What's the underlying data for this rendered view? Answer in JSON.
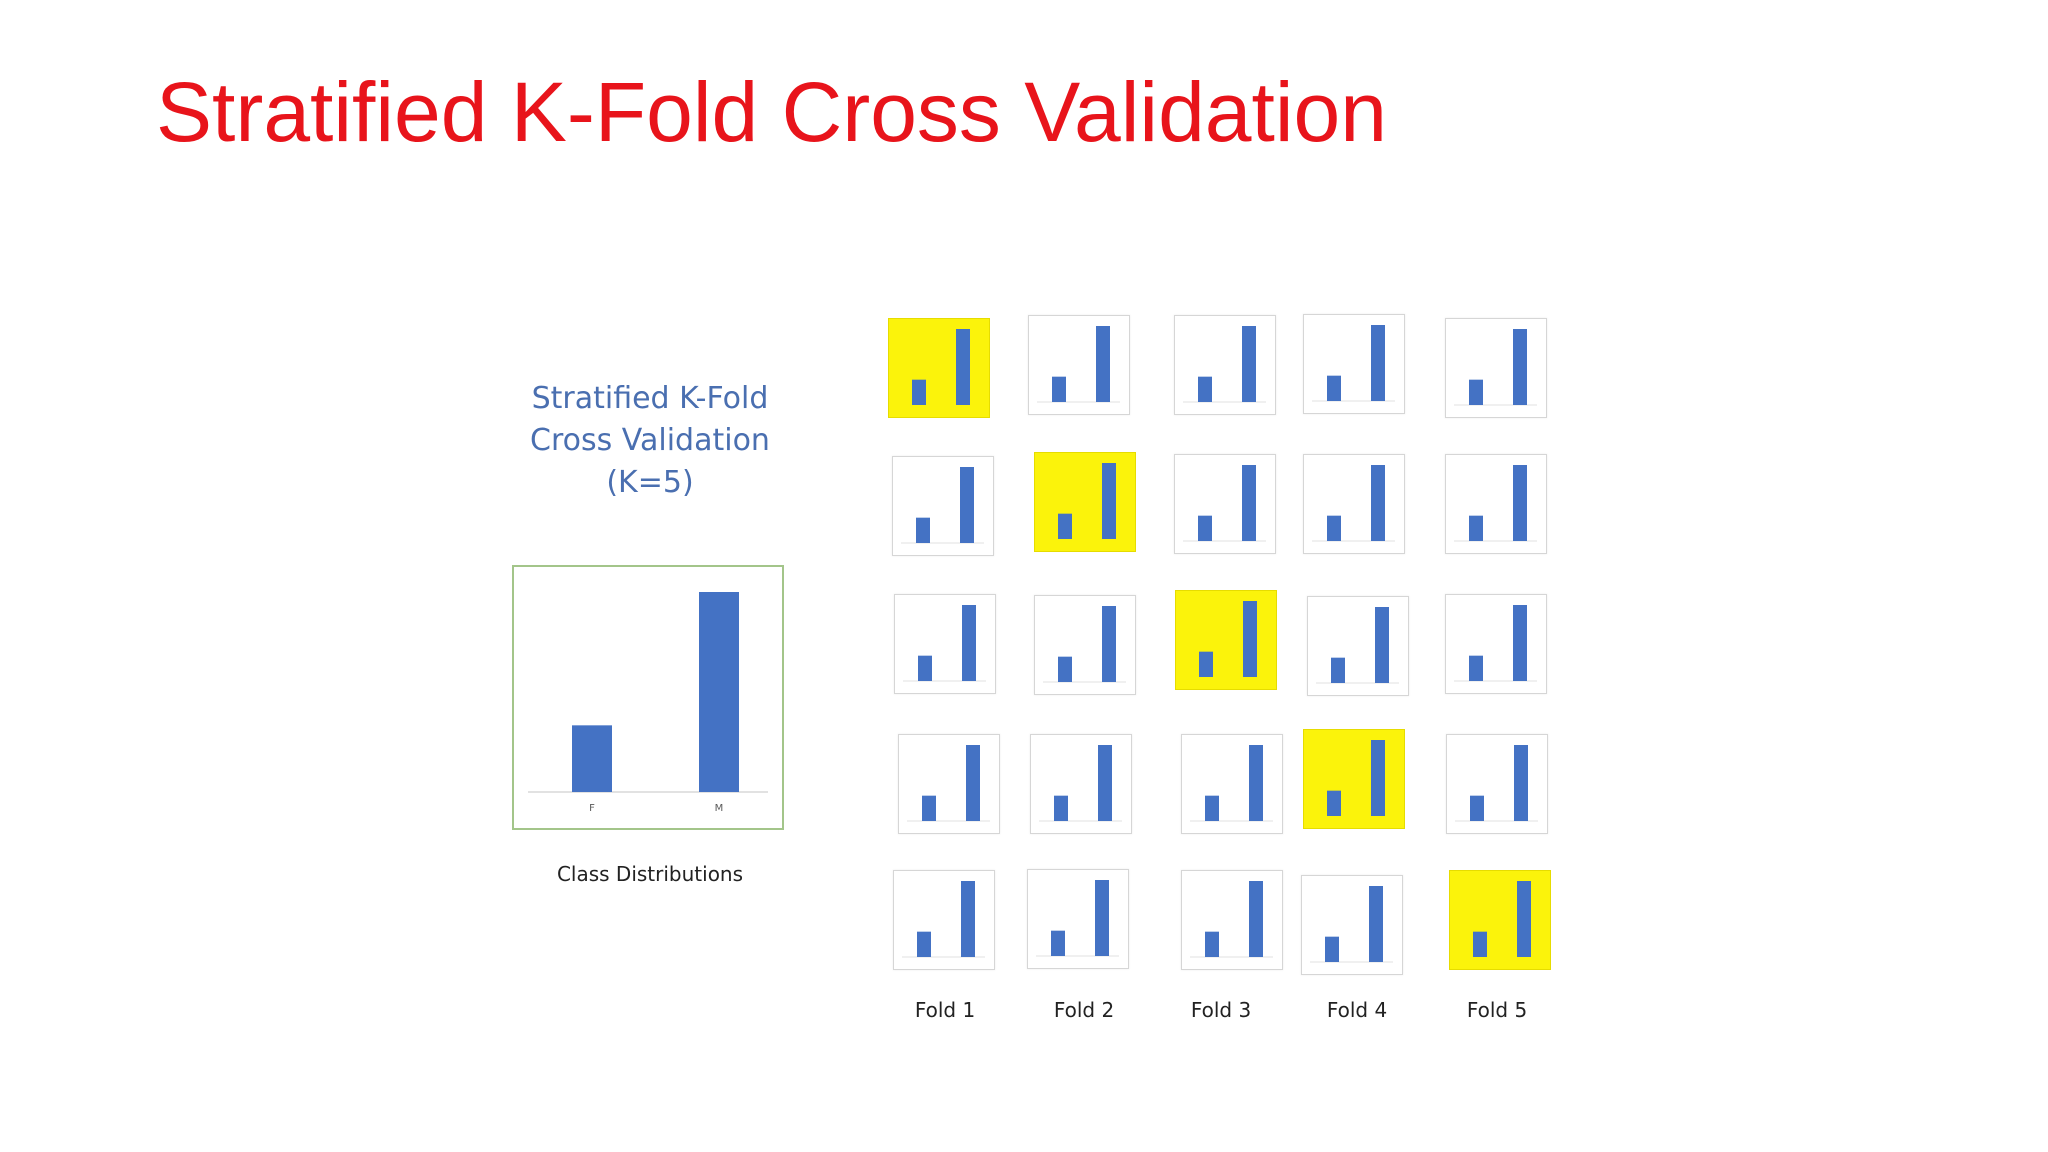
{
  "slide": {
    "title": "Stratified K-Fold Cross Validation"
  },
  "diagram": {
    "heading_lines": [
      "Stratified K-Fold",
      "Cross Validation",
      "(K=5)"
    ],
    "overall_caption": "Class Distributions",
    "fold_labels": [
      "Fold 1",
      "Fold 2",
      "Fold 3",
      "Fold 4",
      "Fold 5"
    ],
    "colors": {
      "bar": "#4472c4",
      "test_fold_highlight": "#fbf30b",
      "overall_border": "#a3c58a",
      "title": "#e8141b",
      "heading": "#4a6fb0"
    }
  },
  "chart_data": {
    "type": "bar",
    "categories": [
      "F",
      "M"
    ],
    "values": [
      1,
      3
    ],
    "folds": 5,
    "test_fold_per_row": [
      1,
      2,
      3,
      4,
      5
    ]
  }
}
